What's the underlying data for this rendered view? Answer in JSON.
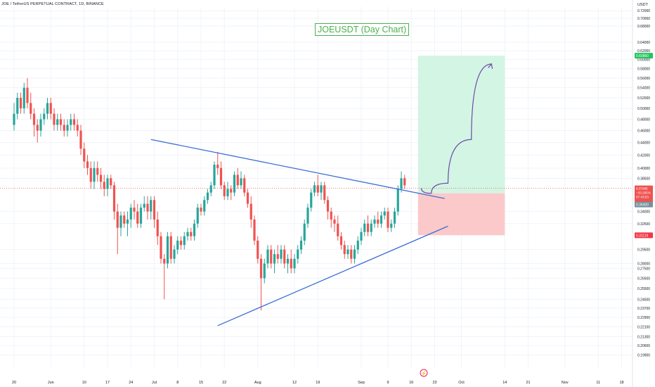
{
  "header": {
    "symbol_line": "JOE / TetherUS PERPETUAL CONTRACT, 1D, BINANCE",
    "currency": "USDT"
  },
  "annotation_title": "JOEUSDT (Day Chart)",
  "colors": {
    "up": "#26a69a",
    "down": "#ef5350",
    "trendline": "#3d6fd6",
    "projection": "#6a4aa8",
    "target_zone": "#d3f5e3",
    "stop_zone": "#fbc9c9",
    "target_tag": "#22c55e",
    "stop_tag": "#f23645",
    "entry_tag": "#78909c",
    "grid": "#f0f3fa"
  },
  "chart_data": {
    "type": "candlestick",
    "title": "JOEUSDT (Day Chart)",
    "ylim": [
      0.19,
      0.73
    ],
    "yaxis_scale": "log",
    "y_ticks": [
      "0.72000",
      "0.70000",
      "0.68000",
      "0.64000",
      "0.62000",
      "0.60000",
      "0.58000",
      "0.56000",
      "0.54000",
      "0.52000",
      "0.50000",
      "0.48000",
      "0.46000",
      "0.44000",
      "0.42000",
      "0.40000",
      "0.38500",
      "0.34000",
      "0.32500",
      "0.29500",
      "0.28000",
      "0.27500",
      "0.26500",
      "0.25500",
      "0.24500",
      "0.23700",
      "0.22900",
      "0.22100",
      "0.21300",
      "0.20600",
      "0.19900"
    ],
    "x_ticks": [
      {
        "label": "20",
        "i": 0
      },
      {
        "label": "Jun",
        "i": 11
      },
      {
        "label": "10",
        "i": 21
      },
      {
        "label": "17",
        "i": 28
      },
      {
        "label": "24",
        "i": 35
      },
      {
        "label": "Jul",
        "i": 42
      },
      {
        "label": "8",
        "i": 49
      },
      {
        "label": "15",
        "i": 56
      },
      {
        "label": "22",
        "i": 63
      },
      {
        "label": "Aug",
        "i": 73
      },
      {
        "label": "12",
        "i": 84
      },
      {
        "label": "19",
        "i": 91
      },
      {
        "label": "Sep",
        "i": 104
      },
      {
        "label": "9",
        "i": 112
      },
      {
        "label": "16",
        "i": 119
      },
      {
        "label": "23",
        "i": 126
      },
      {
        "label": "Oct",
        "i": 134
      },
      {
        "label": "14",
        "i": 147
      },
      {
        "label": "21",
        "i": 154
      },
      {
        "label": "Nov",
        "i": 165
      },
      {
        "label": "11",
        "i": 175
      },
      {
        "label": "18",
        "i": 182
      }
    ],
    "price_tags": {
      "target": "0.60860",
      "entry_last": "0.37085",
      "entry_change": "−33.265%",
      "entry_time": "07:43:53",
      "entry_level": "0.36400",
      "stop": "0.31119"
    },
    "levels": {
      "target": 0.6086,
      "entry": 0.364,
      "stop": 0.31119,
      "last": 0.37085
    },
    "trendlines": [
      {
        "name": "upper",
        "from": {
          "i": 41,
          "y": 0.445
        },
        "to": {
          "i": 129,
          "y": 0.357
        }
      },
      {
        "name": "lower",
        "from": {
          "i": 61,
          "y": 0.222
        },
        "to": {
          "i": 130,
          "y": 0.322
        }
      }
    ],
    "position_box": {
      "start_i": 121,
      "end_i": 147
    },
    "projection": [
      {
        "i": 122,
        "y": 0.371
      },
      {
        "i": 125,
        "y": 0.364
      },
      {
        "i": 130,
        "y": 0.378
      },
      {
        "i": 137,
        "y": 0.445
      },
      {
        "i": 143,
        "y": 0.59
      }
    ],
    "candles": [
      {
        "o": 0.47,
        "h": 0.51,
        "l": 0.46,
        "c": 0.49
      },
      {
        "o": 0.49,
        "h": 0.53,
        "l": 0.48,
        "c": 0.52
      },
      {
        "o": 0.52,
        "h": 0.53,
        "l": 0.49,
        "c": 0.5
      },
      {
        "o": 0.5,
        "h": 0.55,
        "l": 0.49,
        "c": 0.54
      },
      {
        "o": 0.54,
        "h": 0.56,
        "l": 0.5,
        "c": 0.51
      },
      {
        "o": 0.51,
        "h": 0.53,
        "l": 0.48,
        "c": 0.49
      },
      {
        "o": 0.49,
        "h": 0.5,
        "l": 0.45,
        "c": 0.47
      },
      {
        "o": 0.47,
        "h": 0.48,
        "l": 0.44,
        "c": 0.46
      },
      {
        "o": 0.46,
        "h": 0.49,
        "l": 0.45,
        "c": 0.48
      },
      {
        "o": 0.48,
        "h": 0.5,
        "l": 0.47,
        "c": 0.49
      },
      {
        "o": 0.49,
        "h": 0.52,
        "l": 0.48,
        "c": 0.51
      },
      {
        "o": 0.51,
        "h": 0.52,
        "l": 0.48,
        "c": 0.49
      },
      {
        "o": 0.49,
        "h": 0.5,
        "l": 0.46,
        "c": 0.47
      },
      {
        "o": 0.47,
        "h": 0.49,
        "l": 0.46,
        "c": 0.48
      },
      {
        "o": 0.48,
        "h": 0.49,
        "l": 0.46,
        "c": 0.47
      },
      {
        "o": 0.47,
        "h": 0.48,
        "l": 0.45,
        "c": 0.46
      },
      {
        "o": 0.46,
        "h": 0.48,
        "l": 0.45,
        "c": 0.47
      },
      {
        "o": 0.47,
        "h": 0.49,
        "l": 0.46,
        "c": 0.48
      },
      {
        "o": 0.48,
        "h": 0.49,
        "l": 0.46,
        "c": 0.47
      },
      {
        "o": 0.47,
        "h": 0.48,
        "l": 0.45,
        "c": 0.46
      },
      {
        "o": 0.46,
        "h": 0.47,
        "l": 0.42,
        "c": 0.43
      },
      {
        "o": 0.43,
        "h": 0.44,
        "l": 0.4,
        "c": 0.41
      },
      {
        "o": 0.41,
        "h": 0.42,
        "l": 0.39,
        "c": 0.4
      },
      {
        "o": 0.4,
        "h": 0.41,
        "l": 0.37,
        "c": 0.38
      },
      {
        "o": 0.38,
        "h": 0.41,
        "l": 0.37,
        "c": 0.4
      },
      {
        "o": 0.4,
        "h": 0.41,
        "l": 0.38,
        "c": 0.39
      },
      {
        "o": 0.39,
        "h": 0.4,
        "l": 0.37,
        "c": 0.38
      },
      {
        "o": 0.38,
        "h": 0.39,
        "l": 0.36,
        "c": 0.37
      },
      {
        "o": 0.37,
        "h": 0.39,
        "l": 0.36,
        "c": 0.385
      },
      {
        "o": 0.385,
        "h": 0.39,
        "l": 0.37,
        "c": 0.375
      },
      {
        "o": 0.375,
        "h": 0.38,
        "l": 0.33,
        "c": 0.34
      },
      {
        "o": 0.34,
        "h": 0.35,
        "l": 0.29,
        "c": 0.32
      },
      {
        "o": 0.32,
        "h": 0.34,
        "l": 0.31,
        "c": 0.335
      },
      {
        "o": 0.335,
        "h": 0.34,
        "l": 0.32,
        "c": 0.325
      },
      {
        "o": 0.325,
        "h": 0.34,
        "l": 0.31,
        "c": 0.33
      },
      {
        "o": 0.33,
        "h": 0.35,
        "l": 0.32,
        "c": 0.345
      },
      {
        "o": 0.345,
        "h": 0.355,
        "l": 0.33,
        "c": 0.34
      },
      {
        "o": 0.34,
        "h": 0.35,
        "l": 0.32,
        "c": 0.325
      },
      {
        "o": 0.325,
        "h": 0.35,
        "l": 0.32,
        "c": 0.345
      },
      {
        "o": 0.345,
        "h": 0.36,
        "l": 0.34,
        "c": 0.35
      },
      {
        "o": 0.35,
        "h": 0.36,
        "l": 0.33,
        "c": 0.34
      },
      {
        "o": 0.34,
        "h": 0.36,
        "l": 0.33,
        "c": 0.355
      },
      {
        "o": 0.355,
        "h": 0.36,
        "l": 0.32,
        "c": 0.33
      },
      {
        "o": 0.33,
        "h": 0.34,
        "l": 0.3,
        "c": 0.31
      },
      {
        "o": 0.31,
        "h": 0.315,
        "l": 0.28,
        "c": 0.285
      },
      {
        "o": 0.285,
        "h": 0.29,
        "l": 0.245,
        "c": 0.28
      },
      {
        "o": 0.28,
        "h": 0.315,
        "l": 0.275,
        "c": 0.31
      },
      {
        "o": 0.31,
        "h": 0.315,
        "l": 0.28,
        "c": 0.285
      },
      {
        "o": 0.285,
        "h": 0.3,
        "l": 0.28,
        "c": 0.295
      },
      {
        "o": 0.295,
        "h": 0.31,
        "l": 0.29,
        "c": 0.305
      },
      {
        "o": 0.305,
        "h": 0.31,
        "l": 0.295,
        "c": 0.3
      },
      {
        "o": 0.3,
        "h": 0.315,
        "l": 0.295,
        "c": 0.31
      },
      {
        "o": 0.31,
        "h": 0.32,
        "l": 0.305,
        "c": 0.315
      },
      {
        "o": 0.315,
        "h": 0.32,
        "l": 0.305,
        "c": 0.31
      },
      {
        "o": 0.31,
        "h": 0.33,
        "l": 0.305,
        "c": 0.325
      },
      {
        "o": 0.325,
        "h": 0.35,
        "l": 0.32,
        "c": 0.345
      },
      {
        "o": 0.345,
        "h": 0.35,
        "l": 0.335,
        "c": 0.34
      },
      {
        "o": 0.34,
        "h": 0.36,
        "l": 0.335,
        "c": 0.355
      },
      {
        "o": 0.355,
        "h": 0.37,
        "l": 0.35,
        "c": 0.365
      },
      {
        "o": 0.365,
        "h": 0.38,
        "l": 0.36,
        "c": 0.375
      },
      {
        "o": 0.375,
        "h": 0.41,
        "l": 0.37,
        "c": 0.405
      },
      {
        "o": 0.405,
        "h": 0.425,
        "l": 0.39,
        "c": 0.4
      },
      {
        "o": 0.4,
        "h": 0.41,
        "l": 0.37,
        "c": 0.375
      },
      {
        "o": 0.375,
        "h": 0.38,
        "l": 0.355,
        "c": 0.36
      },
      {
        "o": 0.36,
        "h": 0.38,
        "l": 0.355,
        "c": 0.37
      },
      {
        "o": 0.37,
        "h": 0.375,
        "l": 0.355,
        "c": 0.365
      },
      {
        "o": 0.365,
        "h": 0.395,
        "l": 0.36,
        "c": 0.39
      },
      {
        "o": 0.39,
        "h": 0.4,
        "l": 0.37,
        "c": 0.375
      },
      {
        "o": 0.375,
        "h": 0.395,
        "l": 0.37,
        "c": 0.385
      },
      {
        "o": 0.385,
        "h": 0.39,
        "l": 0.36,
        "c": 0.365
      },
      {
        "o": 0.365,
        "h": 0.37,
        "l": 0.345,
        "c": 0.35
      },
      {
        "o": 0.35,
        "h": 0.36,
        "l": 0.32,
        "c": 0.33
      },
      {
        "o": 0.33,
        "h": 0.335,
        "l": 0.3,
        "c": 0.305
      },
      {
        "o": 0.305,
        "h": 0.31,
        "l": 0.28,
        "c": 0.285
      },
      {
        "o": 0.285,
        "h": 0.29,
        "l": 0.235,
        "c": 0.265
      },
      {
        "o": 0.265,
        "h": 0.285,
        "l": 0.26,
        "c": 0.28
      },
      {
        "o": 0.28,
        "h": 0.3,
        "l": 0.275,
        "c": 0.295
      },
      {
        "o": 0.295,
        "h": 0.3,
        "l": 0.275,
        "c": 0.28
      },
      {
        "o": 0.28,
        "h": 0.295,
        "l": 0.27,
        "c": 0.29
      },
      {
        "o": 0.29,
        "h": 0.3,
        "l": 0.28,
        "c": 0.285
      },
      {
        "o": 0.285,
        "h": 0.3,
        "l": 0.28,
        "c": 0.295
      },
      {
        "o": 0.295,
        "h": 0.3,
        "l": 0.275,
        "c": 0.28
      },
      {
        "o": 0.28,
        "h": 0.29,
        "l": 0.27,
        "c": 0.285
      },
      {
        "o": 0.285,
        "h": 0.295,
        "l": 0.27,
        "c": 0.275
      },
      {
        "o": 0.275,
        "h": 0.29,
        "l": 0.27,
        "c": 0.285
      },
      {
        "o": 0.285,
        "h": 0.3,
        "l": 0.28,
        "c": 0.295
      },
      {
        "o": 0.295,
        "h": 0.31,
        "l": 0.29,
        "c": 0.305
      },
      {
        "o": 0.305,
        "h": 0.33,
        "l": 0.3,
        "c": 0.325
      },
      {
        "o": 0.325,
        "h": 0.35,
        "l": 0.32,
        "c": 0.345
      },
      {
        "o": 0.345,
        "h": 0.37,
        "l": 0.34,
        "c": 0.365
      },
      {
        "o": 0.365,
        "h": 0.38,
        "l": 0.36,
        "c": 0.375
      },
      {
        "o": 0.375,
        "h": 0.39,
        "l": 0.36,
        "c": 0.365
      },
      {
        "o": 0.365,
        "h": 0.38,
        "l": 0.355,
        "c": 0.375
      },
      {
        "o": 0.375,
        "h": 0.38,
        "l": 0.35,
        "c": 0.355
      },
      {
        "o": 0.355,
        "h": 0.36,
        "l": 0.33,
        "c": 0.34
      },
      {
        "o": 0.34,
        "h": 0.345,
        "l": 0.32,
        "c": 0.33
      },
      {
        "o": 0.33,
        "h": 0.335,
        "l": 0.315,
        "c": 0.325
      },
      {
        "o": 0.325,
        "h": 0.335,
        "l": 0.305,
        "c": 0.31
      },
      {
        "o": 0.31,
        "h": 0.315,
        "l": 0.295,
        "c": 0.3
      },
      {
        "o": 0.3,
        "h": 0.305,
        "l": 0.285,
        "c": 0.29
      },
      {
        "o": 0.29,
        "h": 0.3,
        "l": 0.285,
        "c": 0.295
      },
      {
        "o": 0.295,
        "h": 0.3,
        "l": 0.28,
        "c": 0.285
      },
      {
        "o": 0.285,
        "h": 0.3,
        "l": 0.28,
        "c": 0.295
      },
      {
        "o": 0.295,
        "h": 0.31,
        "l": 0.29,
        "c": 0.305
      },
      {
        "o": 0.305,
        "h": 0.32,
        "l": 0.3,
        "c": 0.315
      },
      {
        "o": 0.315,
        "h": 0.33,
        "l": 0.31,
        "c": 0.325
      },
      {
        "o": 0.325,
        "h": 0.335,
        "l": 0.31,
        "c": 0.315
      },
      {
        "o": 0.315,
        "h": 0.33,
        "l": 0.31,
        "c": 0.325
      },
      {
        "o": 0.325,
        "h": 0.335,
        "l": 0.32,
        "c": 0.33
      },
      {
        "o": 0.33,
        "h": 0.34,
        "l": 0.32,
        "c": 0.325
      },
      {
        "o": 0.325,
        "h": 0.34,
        "l": 0.32,
        "c": 0.335
      },
      {
        "o": 0.335,
        "h": 0.345,
        "l": 0.33,
        "c": 0.34
      },
      {
        "o": 0.34,
        "h": 0.345,
        "l": 0.315,
        "c": 0.32
      },
      {
        "o": 0.32,
        "h": 0.33,
        "l": 0.315,
        "c": 0.325
      },
      {
        "o": 0.325,
        "h": 0.345,
        "l": 0.32,
        "c": 0.34
      },
      {
        "o": 0.34,
        "h": 0.375,
        "l": 0.335,
        "c": 0.37
      },
      {
        "o": 0.37,
        "h": 0.395,
        "l": 0.365,
        "c": 0.385
      },
      {
        "o": 0.385,
        "h": 0.39,
        "l": 0.37,
        "c": 0.375
      }
    ]
  }
}
